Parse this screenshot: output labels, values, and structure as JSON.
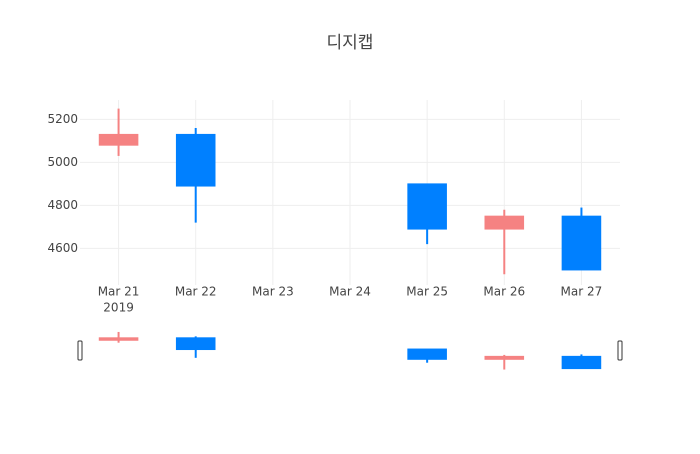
{
  "chart_data": {
    "type": "candlestick",
    "title": "디지캡",
    "categories": [
      "Mar 21",
      "Mar 22",
      "Mar 23",
      "Mar 24",
      "Mar 25",
      "Mar 26",
      "Mar 27"
    ],
    "year_label": "2019",
    "series": [
      {
        "open": [
          5080,
          5130,
          null,
          null,
          4900,
          4690,
          4750
        ],
        "high": [
          5250,
          5160,
          null,
          null,
          4900,
          4780,
          4790
        ],
        "low": [
          5030,
          4720,
          null,
          null,
          4620,
          4480,
          4500
        ],
        "close": [
          5130,
          4890,
          null,
          null,
          4690,
          4750,
          4500
        ],
        "increasing_color": "#f58282",
        "decreasing_color": "#0080ff"
      }
    ],
    "ylim": [
      4430,
      5290
    ],
    "yticks": [
      4600,
      4800,
      5000,
      5200
    ],
    "grid": true,
    "rangeslider": true
  }
}
